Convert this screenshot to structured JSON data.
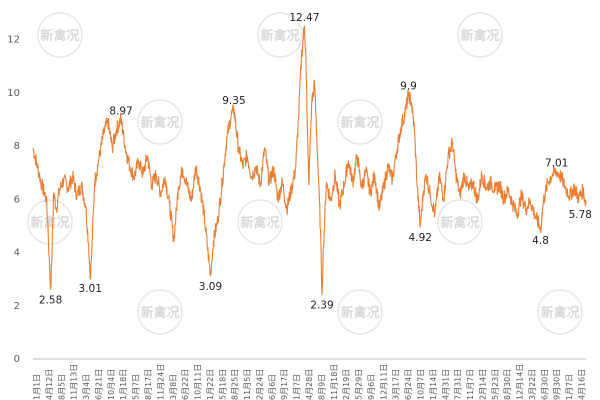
{
  "chart_data": {
    "type": "line",
    "title": "",
    "xlabel": "",
    "ylabel": "",
    "ylim": [
      0,
      13
    ],
    "yticks": [
      0,
      2,
      4,
      6,
      8,
      10,
      12
    ],
    "grid": false,
    "legend": "none",
    "watermark": "新禽况",
    "colors": {
      "line": "#ed7d31",
      "axis": "#bfbfbf",
      "text": "#595959"
    },
    "x_tick_labels": [
      "1月1日",
      "4月12日",
      "8月5日",
      "11月13日",
      "3月4日",
      "6月21日",
      "10月4日",
      "1月18日",
      "5月7日",
      "8月17日",
      "11月24日",
      "3月8日",
      "6月22日",
      "10月11日",
      "1月22日",
      "5月18日",
      "8月25日",
      "11月5日",
      "2月24日",
      "6月6日",
      "9月17日",
      "1月7日",
      "4月28日",
      "8月9日",
      "11月18日",
      "2月19日",
      "5月29日",
      "9月6日",
      "12月11日",
      "3月17日",
      "6月24日",
      "10月7日",
      "1月14日",
      "4月31日",
      "7月31日",
      "11月7日",
      "2月14日",
      "5月23日",
      "8月30日",
      "12月14日",
      "3月22日",
      "6月30日",
      "9月30日",
      "1月7日",
      "4月16日"
    ],
    "series": [
      {
        "points": [
          [
            0,
            7.9
          ],
          [
            3,
            7.2
          ],
          [
            6,
            6.5
          ],
          [
            9,
            6.0
          ],
          [
            10,
            5.2
          ],
          [
            11,
            3.8
          ],
          [
            12,
            2.58
          ],
          [
            13,
            4.0
          ],
          [
            14,
            6.2
          ],
          [
            16,
            5.6
          ],
          [
            18,
            6.3
          ],
          [
            21,
            6.7
          ],
          [
            24,
            6.4
          ],
          [
            27,
            6.8
          ],
          [
            30,
            6.1
          ],
          [
            33,
            6.5
          ],
          [
            36,
            5.7
          ],
          [
            38,
            4.2
          ],
          [
            39,
            3.01
          ],
          [
            40,
            3.9
          ],
          [
            42,
            6.6
          ],
          [
            45,
            7.5
          ],
          [
            48,
            8.4
          ],
          [
            51,
            8.9
          ],
          [
            54,
            7.9
          ],
          [
            57,
            8.6
          ],
          [
            60,
            8.97
          ],
          [
            63,
            7.9
          ],
          [
            66,
            7.2
          ],
          [
            69,
            6.8
          ],
          [
            72,
            7.4
          ],
          [
            75,
            6.9
          ],
          [
            78,
            7.6
          ],
          [
            81,
            6.5
          ],
          [
            84,
            6.9
          ],
          [
            87,
            6.2
          ],
          [
            90,
            6.8
          ],
          [
            93,
            5.8
          ],
          [
            96,
            4.4
          ],
          [
            99,
            6.4
          ],
          [
            102,
            7.1
          ],
          [
            105,
            6.5
          ],
          [
            108,
            5.9
          ],
          [
            111,
            7.2
          ],
          [
            114,
            6.4
          ],
          [
            117,
            5.2
          ],
          [
            120,
            3.6
          ],
          [
            121,
            3.09
          ],
          [
            123,
            4.4
          ],
          [
            126,
            5.2
          ],
          [
            129,
            6.6
          ],
          [
            132,
            8.2
          ],
          [
            135,
            9.1
          ],
          [
            137,
            9.35
          ],
          [
            140,
            7.9
          ],
          [
            143,
            7.2
          ],
          [
            146,
            7.6
          ],
          [
            149,
            6.8
          ],
          [
            152,
            7.2
          ],
          [
            155,
            6.5
          ],
          [
            158,
            7.9
          ],
          [
            161,
            6.6
          ],
          [
            164,
            7.1
          ],
          [
            167,
            6.0
          ],
          [
            170,
            6.6
          ],
          [
            173,
            5.6
          ],
          [
            176,
            6.3
          ],
          [
            179,
            7.1
          ],
          [
            181,
            9.0
          ],
          [
            183,
            11.3
          ],
          [
            185,
            12.47
          ],
          [
            186,
            11.5
          ],
          [
            187,
            8.7
          ],
          [
            188,
            6.5
          ],
          [
            190,
            9.6
          ],
          [
            192,
            10.3
          ],
          [
            194,
            7.6
          ],
          [
            196,
            4.8
          ],
          [
            197,
            2.39
          ],
          [
            198,
            4.2
          ],
          [
            200,
            6.6
          ],
          [
            203,
            5.9
          ],
          [
            206,
            6.9
          ],
          [
            209,
            5.7
          ],
          [
            212,
            6.5
          ],
          [
            215,
            7.4
          ],
          [
            218,
            6.6
          ],
          [
            221,
            7.6
          ],
          [
            224,
            6.4
          ],
          [
            227,
            7.0
          ],
          [
            230,
            6.2
          ],
          [
            233,
            6.9
          ],
          [
            236,
            5.6
          ],
          [
            239,
            6.4
          ],
          [
            242,
            7.2
          ],
          [
            245,
            6.7
          ],
          [
            248,
            7.8
          ],
          [
            251,
            8.7
          ],
          [
            254,
            9.3
          ],
          [
            256,
            9.9
          ],
          [
            258,
            9.6
          ],
          [
            260,
            8.6
          ],
          [
            262,
            6.4
          ],
          [
            264,
            4.92
          ],
          [
            266,
            6.2
          ],
          [
            268,
            6.9
          ],
          [
            271,
            6.1
          ],
          [
            274,
            5.4
          ],
          [
            277,
            6.8
          ],
          [
            280,
            6.0
          ],
          [
            283,
            7.6
          ],
          [
            286,
            8.1
          ],
          [
            288,
            7.0
          ],
          [
            291,
            6.1
          ],
          [
            294,
            6.9
          ],
          [
            297,
            6.3
          ],
          [
            300,
            6.6
          ],
          [
            303,
            5.9
          ],
          [
            306,
            6.9
          ],
          [
            309,
            6.4
          ],
          [
            312,
            6.6
          ],
          [
            315,
            6.3
          ],
          [
            318,
            6.5
          ],
          [
            321,
            6.0
          ],
          [
            324,
            6.3
          ],
          [
            327,
            5.8
          ],
          [
            330,
            5.4
          ],
          [
            333,
            6.1
          ],
          [
            336,
            5.6
          ],
          [
            339,
            5.9
          ],
          [
            342,
            5.4
          ],
          [
            345,
            5.0
          ],
          [
            346,
            4.8
          ],
          [
            348,
            5.9
          ],
          [
            351,
            6.6
          ],
          [
            354,
            6.9
          ],
          [
            357,
            7.01
          ],
          [
            360,
            6.8
          ],
          [
            363,
            6.4
          ],
          [
            366,
            6.1
          ],
          [
            369,
            6.4
          ],
          [
            372,
            6.0
          ],
          [
            375,
            6.3
          ],
          [
            377,
            5.78
          ]
        ]
      }
    ],
    "annotations": [
      {
        "x": 12,
        "y": 2.58,
        "text": "2.58",
        "pos": "below"
      },
      {
        "x": 39,
        "y": 3.01,
        "text": "3.01",
        "pos": "below"
      },
      {
        "x": 60,
        "y": 8.97,
        "text": "8.97",
        "pos": "above"
      },
      {
        "x": 121,
        "y": 3.09,
        "text": "3.09",
        "pos": "below"
      },
      {
        "x": 137,
        "y": 9.35,
        "text": "9.35",
        "pos": "above"
      },
      {
        "x": 185,
        "y": 12.47,
        "text": "12.47",
        "pos": "above"
      },
      {
        "x": 197,
        "y": 2.39,
        "text": "2.39",
        "pos": "below"
      },
      {
        "x": 256,
        "y": 9.9,
        "text": "9.9",
        "pos": "above"
      },
      {
        "x": 264,
        "y": 4.92,
        "text": "4.92",
        "pos": "below"
      },
      {
        "x": 346,
        "y": 4.8,
        "text": "4.8",
        "pos": "below"
      },
      {
        "x": 357,
        "y": 7.01,
        "text": "7.01",
        "pos": "above"
      },
      {
        "x": 377,
        "y": 5.78,
        "text": "5.78",
        "pos": "below"
      }
    ]
  }
}
